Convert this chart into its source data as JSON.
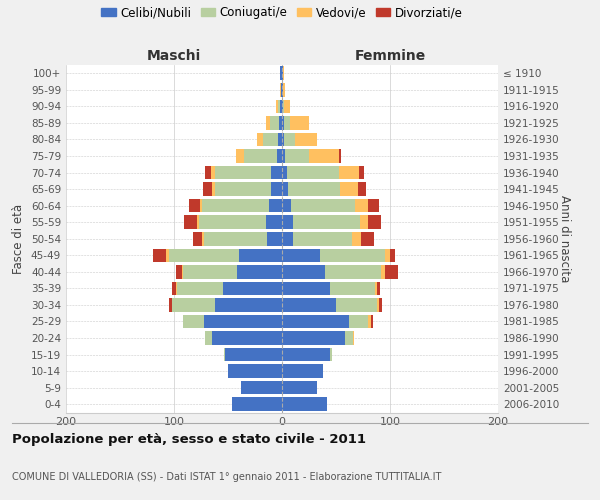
{
  "age_groups": [
    "100+",
    "95-99",
    "90-94",
    "85-89",
    "80-84",
    "75-79",
    "70-74",
    "65-69",
    "60-64",
    "55-59",
    "50-54",
    "45-49",
    "40-44",
    "35-39",
    "30-34",
    "25-29",
    "20-24",
    "15-19",
    "10-14",
    "5-9",
    "0-4"
  ],
  "birth_years": [
    "≤ 1910",
    "1911-1915",
    "1916-1920",
    "1921-1925",
    "1926-1930",
    "1931-1935",
    "1936-1940",
    "1941-1945",
    "1946-1950",
    "1951-1955",
    "1956-1960",
    "1961-1965",
    "1966-1970",
    "1971-1975",
    "1976-1980",
    "1981-1985",
    "1986-1990",
    "1991-1995",
    "1996-2000",
    "2001-2005",
    "2006-2010"
  ],
  "maschi": {
    "celibi": [
      2,
      1,
      2,
      3,
      4,
      5,
      10,
      10,
      12,
      15,
      14,
      40,
      42,
      55,
      62,
      72,
      65,
      53,
      50,
      38,
      46
    ],
    "coniugati": [
      0,
      0,
      2,
      8,
      14,
      30,
      52,
      52,
      62,
      62,
      58,
      65,
      50,
      42,
      40,
      20,
      6,
      1,
      0,
      0,
      0
    ],
    "vedovi": [
      0,
      1,
      2,
      4,
      5,
      8,
      4,
      3,
      2,
      2,
      2,
      2,
      1,
      1,
      0,
      0,
      0,
      0,
      0,
      0,
      0
    ],
    "divorziati": [
      0,
      0,
      0,
      0,
      0,
      0,
      5,
      8,
      10,
      12,
      8,
      12,
      5,
      4,
      3,
      0,
      0,
      0,
      0,
      0,
      0
    ]
  },
  "femmine": {
    "nubili": [
      1,
      1,
      1,
      2,
      2,
      3,
      5,
      6,
      8,
      10,
      10,
      35,
      40,
      44,
      50,
      62,
      58,
      44,
      38,
      32,
      42
    ],
    "coniugate": [
      0,
      0,
      1,
      5,
      10,
      22,
      48,
      48,
      60,
      62,
      55,
      60,
      52,
      42,
      38,
      18,
      8,
      2,
      0,
      0,
      0
    ],
    "vedove": [
      1,
      2,
      5,
      18,
      20,
      28,
      18,
      16,
      12,
      8,
      8,
      5,
      3,
      2,
      2,
      2,
      1,
      0,
      0,
      0,
      0
    ],
    "divorziate": [
      0,
      0,
      0,
      0,
      0,
      2,
      5,
      8,
      10,
      12,
      12,
      5,
      12,
      3,
      3,
      2,
      0,
      0,
      0,
      0,
      0
    ]
  },
  "colors": {
    "celibi": "#4472c4",
    "coniugati": "#b8cfa0",
    "vedovi": "#ffc060",
    "divorziati": "#c0392b"
  },
  "legend_labels": [
    "Celibi/Nubili",
    "Coniugati/e",
    "Vedovi/e",
    "Divorziati/e"
  ],
  "title": "Popolazione per età, sesso e stato civile - 2011",
  "subtitle": "COMUNE DI VALLEDORIA (SS) - Dati ISTAT 1° gennaio 2011 - Elaborazione TUTTITALIA.IT",
  "ylabel_left": "Fasce di età",
  "ylabel_right": "Anni di nascita",
  "xlabel_maschi": "Maschi",
  "xlabel_femmine": "Femmine",
  "xlim": 200,
  "xticks": [
    -200,
    -100,
    0,
    100,
    200
  ],
  "xtick_labels": [
    "200",
    "100",
    "0",
    "100",
    "200"
  ],
  "bg_color": "#f0f0f0",
  "plot_bg": "#ffffff",
  "grid_color": "#cccccc",
  "spine_color": "#cccccc"
}
